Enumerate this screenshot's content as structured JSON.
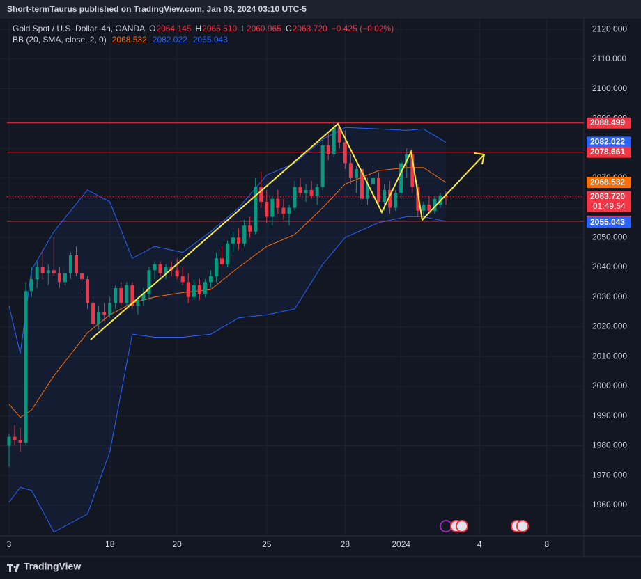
{
  "header": "Short-termTaurus published on TradingView.com, Jan 03, 2024 03:10 UTC-5",
  "footer": "TradingView",
  "legend": {
    "symbol": "Gold Spot / U.S. Dollar, 4h, OANDA",
    "o": "O",
    "open": "2064.145",
    "h": "H",
    "high": "2065.510",
    "l": "L",
    "low": "2060.965",
    "c": "C",
    "close": "2063.720",
    "change": "−0.425 (−0.02%)"
  },
  "bb_legend": {
    "name": "BB (20, SMA, close, 2, 0)",
    "values": [
      {
        "text": "2068.532",
        "color": "#ff6d00"
      },
      {
        "text": "2082.022",
        "color": "#2962ff"
      },
      {
        "text": "2055.043",
        "color": "#2962ff"
      }
    ]
  },
  "chart_data": {
    "type": "candlestick",
    "up_color": "#089981",
    "down_color": "#f23645",
    "grid": true,
    "xlim": [
      0,
      103
    ],
    "xticks": [
      {
        "value": 0,
        "label": "3"
      },
      {
        "value": 18,
        "label": "18"
      },
      {
        "value": 30,
        "label": "20"
      },
      {
        "value": 46,
        "label": "25"
      },
      {
        "value": 60,
        "label": "28"
      },
      {
        "value": 70,
        "label": "2024"
      },
      {
        "value": 84,
        "label": "4"
      },
      {
        "value": 96,
        "label": "8"
      }
    ],
    "ylim": [
      1949.7,
      2123.3
    ],
    "yticks": [
      {
        "value": 1960,
        "label": "1960.000"
      },
      {
        "value": 1970,
        "label": "1970.000"
      },
      {
        "value": 1980,
        "label": "1980.000"
      },
      {
        "value": 1990,
        "label": "1990.000"
      },
      {
        "value": 2000,
        "label": "2000.000"
      },
      {
        "value": 2010,
        "label": "2010.000"
      },
      {
        "value": 2020,
        "label": "2020.000"
      },
      {
        "value": 2030,
        "label": "2030.000"
      },
      {
        "value": 2040,
        "label": "2040.000"
      },
      {
        "value": 2050,
        "label": "2050.000"
      },
      {
        "value": 2060,
        "label": "2060.000"
      },
      {
        "value": 2070,
        "label": "2070.000"
      },
      {
        "value": 2080,
        "label": "2080.000"
      },
      {
        "value": 2090,
        "label": "2090.000"
      },
      {
        "value": 2100,
        "label": "2100.000"
      },
      {
        "value": 2110,
        "label": "2110.000"
      },
      {
        "value": 2120,
        "label": "2120.000"
      }
    ],
    "ohlc": [
      [
        1980,
        1984,
        1973,
        1983
      ],
      [
        1983,
        1987,
        1980,
        1982
      ],
      [
        1982,
        1986,
        1978,
        1981
      ],
      [
        1981,
        2035,
        1980,
        2032
      ],
      [
        2032,
        2040,
        2030,
        2036
      ],
      [
        2036,
        2042,
        2033,
        2040
      ],
      [
        2040,
        2046,
        2036,
        2038
      ],
      [
        2038,
        2041,
        2034,
        2039
      ],
      [
        2039,
        2050,
        2037,
        2038
      ],
      [
        2038,
        2040,
        2033,
        2035
      ],
      [
        2035,
        2040,
        2034,
        2038
      ],
      [
        2038,
        2045,
        2036,
        2044
      ],
      [
        2044,
        2047,
        2037,
        2038
      ],
      [
        2038,
        2040,
        2032,
        2036
      ],
      [
        2036,
        2037,
        2026,
        2028
      ],
      [
        2028,
        2030,
        2020,
        2021
      ],
      [
        2021,
        2027,
        2019,
        2025
      ],
      [
        2025,
        2028,
        2022,
        2024
      ],
      [
        2024,
        2030,
        2023,
        2028
      ],
      [
        2028,
        2034,
        2026,
        2033
      ],
      [
        2033,
        2035,
        2027,
        2028
      ],
      [
        2028,
        2035,
        2027,
        2034
      ],
      [
        2034,
        2035,
        2026,
        2027
      ],
      [
        2027,
        2030,
        2024,
        2029
      ],
      [
        2029,
        2033,
        2027,
        2031
      ],
      [
        2031,
        2040,
        2029,
        2039
      ],
      [
        2039,
        2042,
        2036,
        2041
      ],
      [
        2041,
        2042,
        2037,
        2038
      ],
      [
        2038,
        2041,
        2036,
        2040
      ],
      [
        2040,
        2042,
        2037,
        2039
      ],
      [
        2039,
        2043,
        2036,
        2037
      ],
      [
        2037,
        2040,
        2034,
        2035
      ],
      [
        2035,
        2038,
        2028,
        2030
      ],
      [
        2030,
        2036,
        2029,
        2034
      ],
      [
        2034,
        2036,
        2029,
        2031
      ],
      [
        2031,
        2036,
        2030,
        2035
      ],
      [
        2035,
        2039,
        2033,
        2037
      ],
      [
        2037,
        2045,
        2035,
        2043
      ],
      [
        2043,
        2047,
        2040,
        2041
      ],
      [
        2041,
        2049,
        2040,
        2048
      ],
      [
        2048,
        2052,
        2045,
        2050
      ],
      [
        2050,
        2053,
        2046,
        2048
      ],
      [
        2048,
        2056,
        2047,
        2054
      ],
      [
        2054,
        2057,
        2050,
        2052
      ],
      [
        2052,
        2070,
        2051,
        2067
      ],
      [
        2067,
        2072,
        2060,
        2062
      ],
      [
        2062,
        2066,
        2055,
        2057
      ],
      [
        2057,
        2064,
        2054,
        2063
      ],
      [
        2063,
        2066,
        2058,
        2060
      ],
      [
        2060,
        2063,
        2056,
        2058
      ],
      [
        2058,
        2061,
        2054,
        2060
      ],
      [
        2060,
        2069,
        2059,
        2067
      ],
      [
        2067,
        2070,
        2064,
        2065
      ],
      [
        2065,
        2068,
        2062,
        2066
      ],
      [
        2066,
        2069,
        2063,
        2064
      ],
      [
        2064,
        2068,
        2061,
        2067
      ],
      [
        2067,
        2083,
        2066,
        2081
      ],
      [
        2081,
        2085,
        2076,
        2078
      ],
      [
        2078,
        2089,
        2077,
        2087
      ],
      [
        2087,
        2088,
        2080,
        2082
      ],
      [
        2082,
        2086,
        2073,
        2075
      ],
      [
        2075,
        2078,
        2068,
        2070
      ],
      [
        2070,
        2074,
        2065,
        2073
      ],
      [
        2073,
        2075,
        2061,
        2063
      ],
      [
        2063,
        2070,
        2061,
        2068
      ],
      [
        2068,
        2074,
        2065,
        2070
      ],
      [
        2070,
        2072,
        2060,
        2062
      ],
      [
        2062,
        2068,
        2059,
        2066
      ],
      [
        2066,
        2069,
        2058,
        2060
      ],
      [
        2060,
        2066,
        2059,
        2065
      ],
      [
        2065,
        2076,
        2063,
        2075
      ],
      [
        2075,
        2080,
        2070,
        2078
      ],
      [
        2078,
        2079,
        2065,
        2067
      ],
      [
        2067,
        2068,
        2057,
        2059
      ],
      [
        2059,
        2062,
        2056,
        2061
      ],
      [
        2061,
        2064,
        2058,
        2059
      ],
      [
        2059,
        2064,
        2058,
        2063
      ],
      [
        2061,
        2065,
        2060,
        2064.145
      ],
      [
        2064.145,
        2065.51,
        2060.965,
        2063.72
      ]
    ],
    "bands": {
      "x": [
        0,
        2,
        4,
        8,
        14,
        18,
        22,
        26,
        31,
        36,
        41,
        46,
        51,
        56,
        60,
        66,
        71,
        74,
        78
      ],
      "upper": [
        2027,
        2011,
        2039,
        2052,
        2066,
        2062,
        2043,
        2047,
        2045,
        2052,
        2060,
        2071,
        2075,
        2083,
        2087,
        2086.5,
        2086,
        2086.5,
        2082
      ],
      "middle": [
        1994,
        1989.5,
        1992,
        2003.5,
        2018,
        2024,
        2028,
        2030,
        2031.5,
        2032.5,
        2040,
        2047,
        2051,
        2060,
        2068,
        2072.5,
        2073.5,
        2073.5,
        2068.5
      ],
      "lower": [
        1961,
        1966,
        1965,
        1951,
        1957,
        1978,
        2017.5,
        2016.5,
        2016.5,
        2017.5,
        2023,
        2024,
        2026,
        2041,
        2050,
        2055,
        2057,
        2057,
        2055.4
      ],
      "band_color": "#2962ff",
      "middle_color": "#ff6d00"
    },
    "hlines": [
      {
        "value": 2088.499,
        "color": "#f23645"
      },
      {
        "value": 2078.661,
        "color": "#f23645"
      },
      {
        "value": 2055.472,
        "color": "#f23645"
      }
    ],
    "last_line": {
      "value": 2063.72,
      "color": "#f23645"
    },
    "tags": [
      {
        "value": 2088.499,
        "color": "#f23645"
      },
      {
        "value": 2082.022,
        "color": "#2962ff"
      },
      {
        "value": 2078.661,
        "color": "#f23645"
      },
      {
        "value": 2068.532,
        "color": "#ff6d00"
      },
      {
        "value": 2063.72,
        "label": "2063.720",
        "color": "#f23645",
        "countdown": "01:49:54"
      },
      {
        "value": 2055.472,
        "color": "#f23645"
      },
      {
        "value": 2055.043,
        "color": "#2962ff"
      }
    ]
  }
}
